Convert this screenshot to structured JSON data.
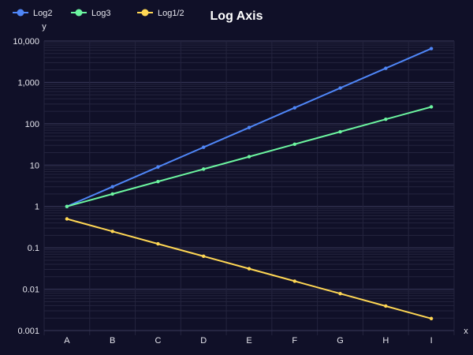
{
  "chart_data": {
    "type": "line",
    "title": "Log Axis",
    "xlabel": "x",
    "ylabel": "y",
    "categories": [
      "A",
      "B",
      "C",
      "D",
      "E",
      "F",
      "G",
      "H",
      "I"
    ],
    "y_scale": "log",
    "ylim": [
      0.001,
      10000
    ],
    "y_ticks": [
      0.001,
      0.01,
      0.1,
      1,
      10,
      100,
      1000,
      10000
    ],
    "y_tick_labels": [
      "0.001",
      "0.01",
      "0.1",
      "1",
      "10",
      "100",
      "1,000",
      "10,000"
    ],
    "grid": true,
    "legend_position": "top-left",
    "series": [
      {
        "name": "Log2",
        "color": "#4f86f7",
        "values": [
          1,
          3,
          9,
          27,
          81,
          243,
          729,
          2187,
          6561
        ]
      },
      {
        "name": "Log3",
        "color": "#6cf5a0",
        "values": [
          1,
          2,
          4,
          8,
          16,
          32,
          64,
          128,
          256
        ]
      },
      {
        "name": "Log1/2",
        "color": "#ffd754",
        "values": [
          0.5,
          0.25,
          0.125,
          0.0625,
          0.03125,
          0.015625,
          0.0078125,
          0.00390625,
          0.001953125
        ]
      }
    ]
  },
  "colors": {
    "background": "#101028",
    "grid_major": "#3a3a5a",
    "grid_minor": "#24243e",
    "text": "#e6e6ee"
  }
}
